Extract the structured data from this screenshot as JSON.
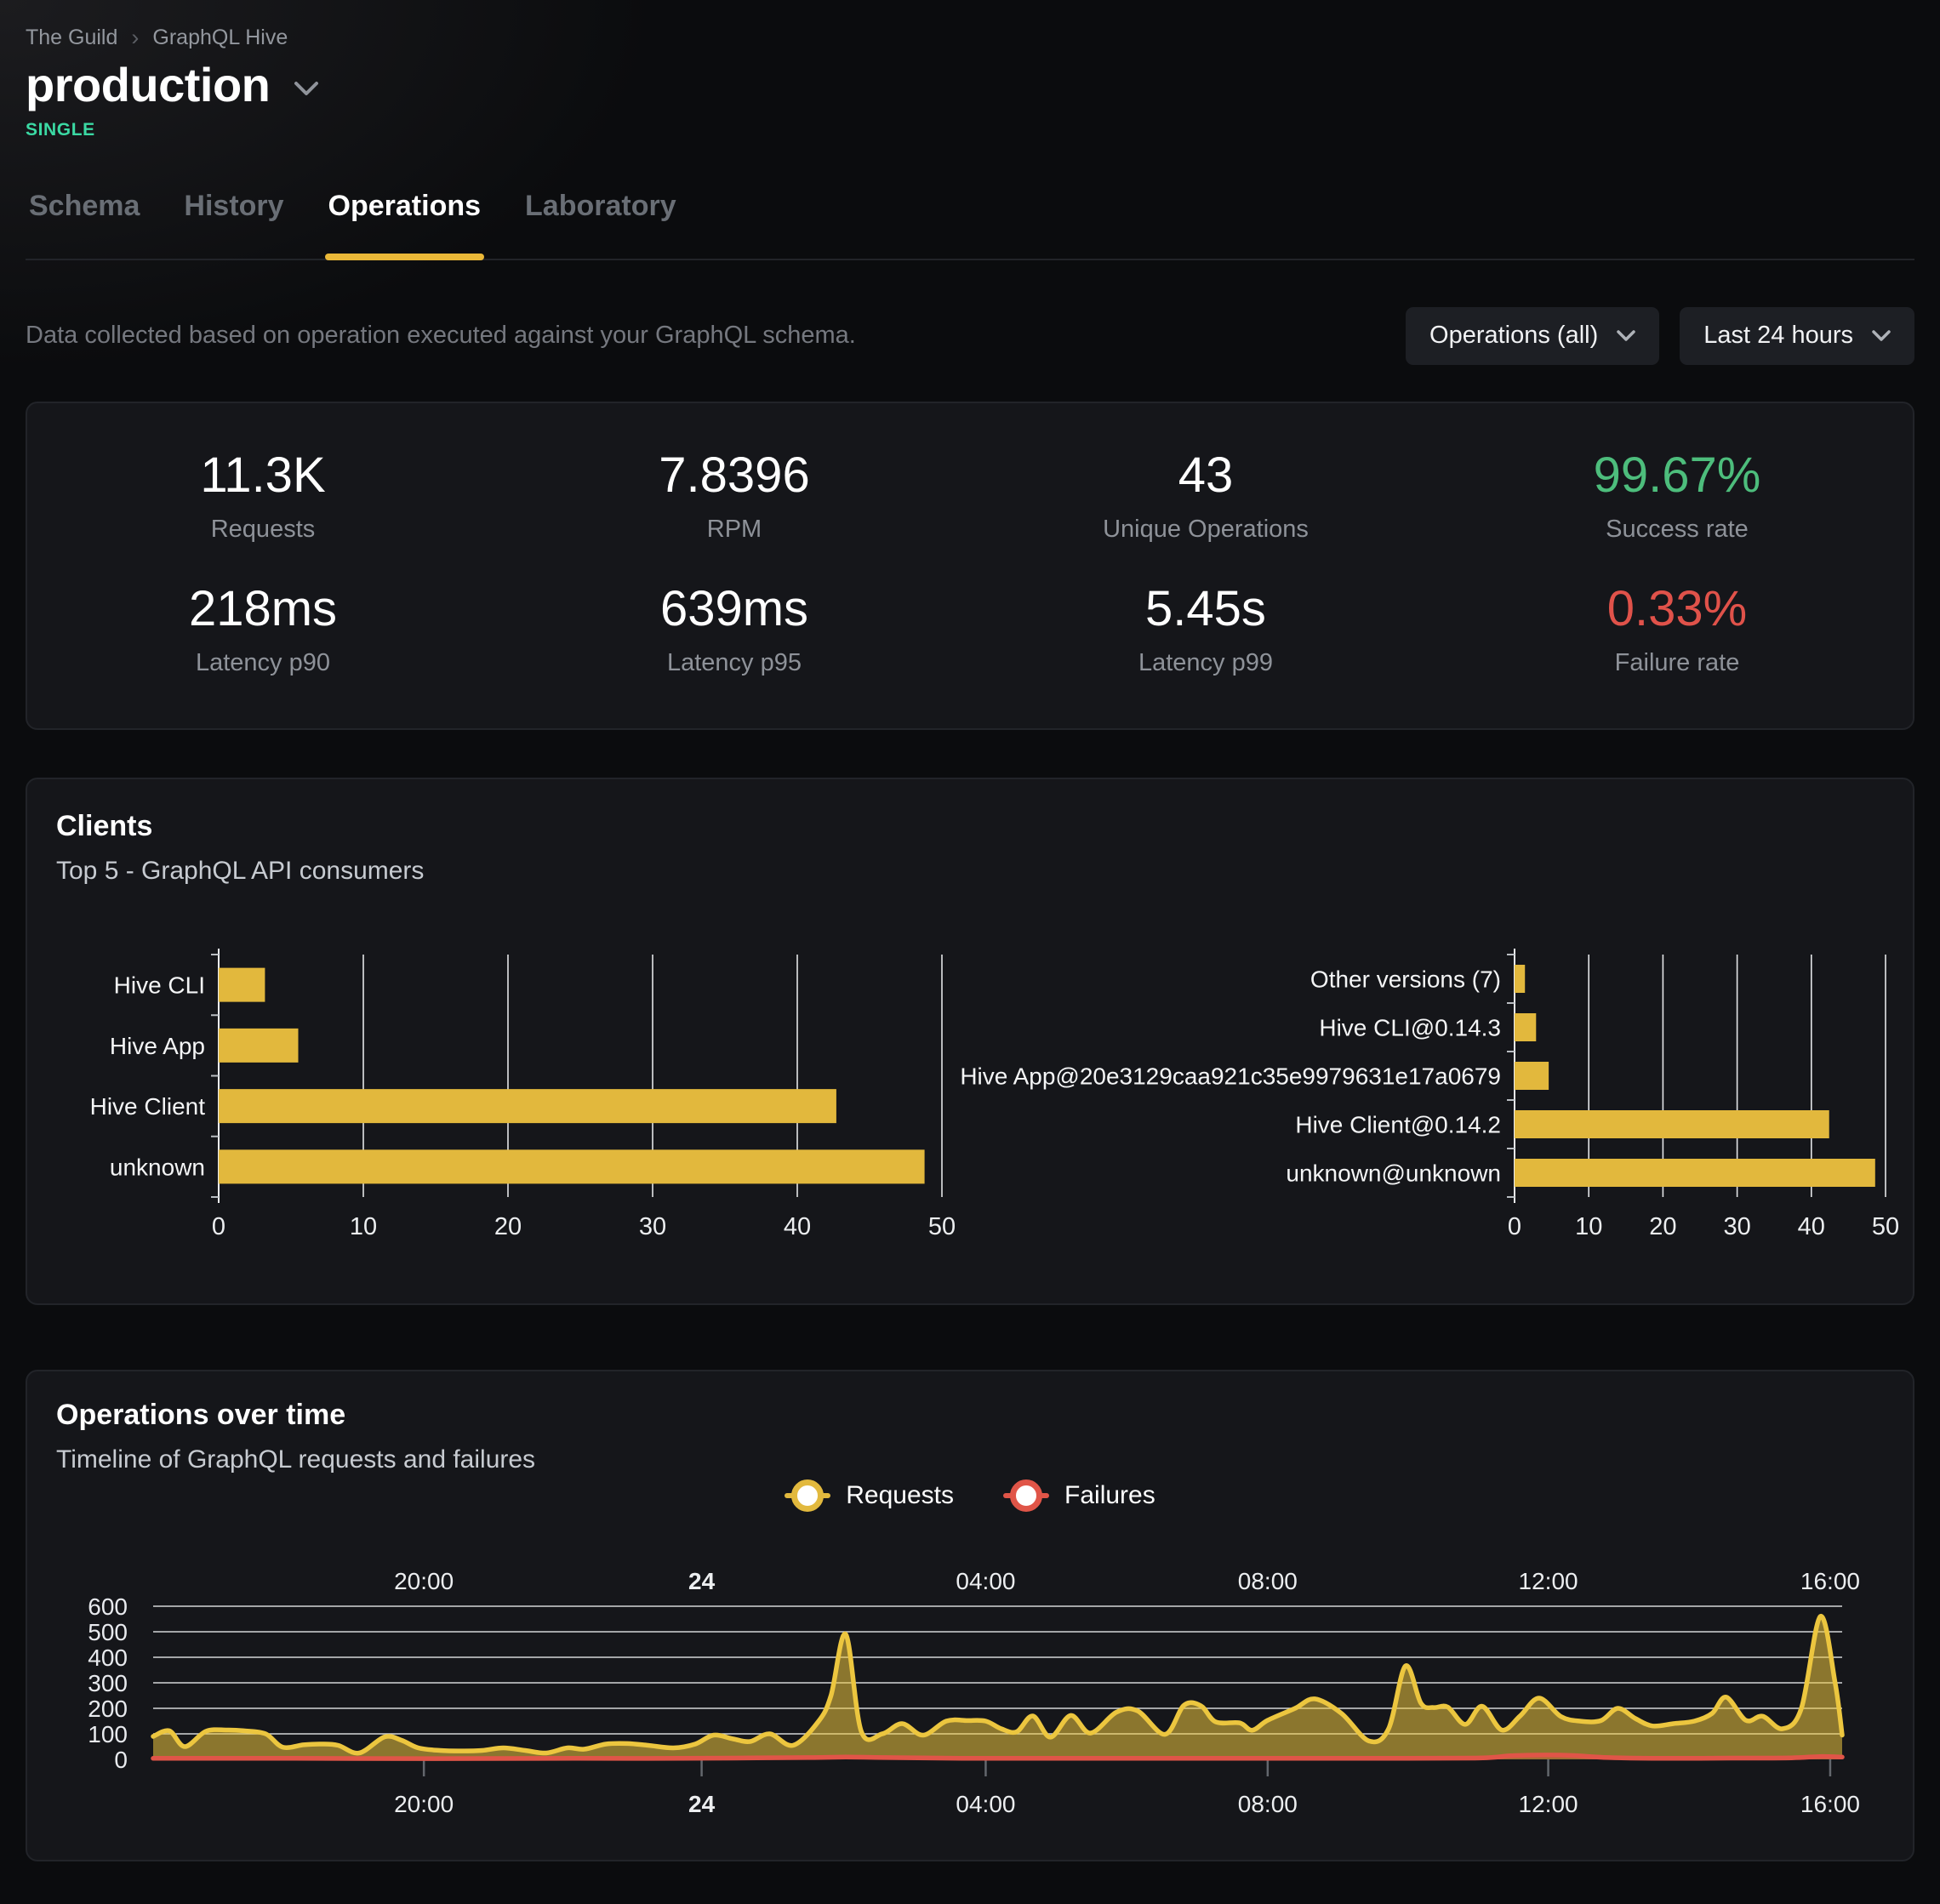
{
  "breadcrumb": {
    "org": "The Guild",
    "project": "GraphQL Hive"
  },
  "header": {
    "title": "production",
    "badge": "SINGLE",
    "badge_color": "#3bd9a3"
  },
  "tabs": [
    {
      "label": "Schema",
      "active": false
    },
    {
      "label": "History",
      "active": false
    },
    {
      "label": "Operations",
      "active": true
    },
    {
      "label": "Laboratory",
      "active": false
    }
  ],
  "filters": {
    "description": "Data collected based on operation executed against your GraphQL schema.",
    "operations_dropdown": "Operations (all)",
    "period_dropdown": "Last 24 hours"
  },
  "stats": [
    {
      "value": "11.3K",
      "label": "Requests",
      "color": "#ffffff"
    },
    {
      "value": "7.8396",
      "label": "RPM",
      "color": "#ffffff"
    },
    {
      "value": "43",
      "label": "Unique Operations",
      "color": "#ffffff"
    },
    {
      "value": "99.67%",
      "label": "Success rate",
      "color": "#4dbd7c"
    },
    {
      "value": "218ms",
      "label": "Latency p90",
      "color": "#ffffff"
    },
    {
      "value": "639ms",
      "label": "Latency p95",
      "color": "#ffffff"
    },
    {
      "value": "5.45s",
      "label": "Latency p99",
      "color": "#ffffff"
    },
    {
      "value": "0.33%",
      "label": "Failure rate",
      "color": "#e0524a"
    }
  ],
  "clients_card": {
    "title": "Clients",
    "subtitle": "Top 5 - GraphQL API consumers"
  },
  "operations_card": {
    "title": "Operations over time",
    "subtitle": "Timeline of GraphQL requests and failures",
    "legend": [
      {
        "label": "Requests",
        "color": "#e2b93e"
      },
      {
        "label": "Failures",
        "color": "#e05548"
      }
    ]
  },
  "chart_data": [
    {
      "type": "bar",
      "title": "Top clients by name",
      "orientation": "horizontal",
      "categories": [
        "Hive CLI",
        "Hive App",
        "Hive Client",
        "unknown"
      ],
      "values": [
        3.2,
        5.5,
        42.7,
        48.8
      ],
      "xlim": [
        0,
        50
      ],
      "ticks": [
        0,
        10,
        20,
        30,
        40,
        50
      ],
      "color": "#e2b83d",
      "grid": true
    },
    {
      "type": "bar",
      "title": "Top clients by version",
      "orientation": "horizontal",
      "categories": [
        "Other versions (7)",
        "Hive CLI@0.14.3",
        "Hive App@20e3129caa921c35e9979631e17a0679",
        "Hive Client@0.14.2",
        "unknown@unknown"
      ],
      "values": [
        1.4,
        2.9,
        4.6,
        42.4,
        48.6
      ],
      "xlim": [
        0,
        50
      ],
      "ticks": [
        0,
        10,
        20,
        30,
        40,
        50
      ],
      "color": "#e2b83d",
      "grid": true
    },
    {
      "type": "area",
      "title": "Operations over time",
      "t_range": [
        0,
        24.02
      ],
      "ylim": [
        0,
        600
      ],
      "y_ticks": [
        0,
        100,
        200,
        300,
        400,
        500,
        600
      ],
      "x_ticks": [
        {
          "t": 3.85,
          "label": "20:00",
          "bold": false
        },
        {
          "t": 7.8,
          "label": "24",
          "bold": true
        },
        {
          "t": 11.84,
          "label": "04:00",
          "bold": false
        },
        {
          "t": 15.85,
          "label": "08:00",
          "bold": false
        },
        {
          "t": 19.84,
          "label": "12:00",
          "bold": false
        },
        {
          "t": 23.85,
          "label": "16:00",
          "bold": false
        }
      ],
      "series": [
        {
          "name": "Requests",
          "color": "#ecc63f",
          "fill_opacity": 0.55,
          "points": [
            [
              0,
              90
            ],
            [
              0.23,
              112
            ],
            [
              0.45,
              50
            ],
            [
              0.75,
              110
            ],
            [
              1.05,
              115
            ],
            [
              1.29,
              112
            ],
            [
              1.6,
              100
            ],
            [
              1.84,
              48
            ],
            [
              2.14,
              57
            ],
            [
              2.38,
              60
            ],
            [
              2.63,
              55
            ],
            [
              2.93,
              25
            ],
            [
              3.29,
              88
            ],
            [
              3.53,
              75
            ],
            [
              3.77,
              45
            ],
            [
              4.08,
              35
            ],
            [
              4.38,
              33
            ],
            [
              4.68,
              35
            ],
            [
              4.98,
              45
            ],
            [
              5.29,
              35
            ],
            [
              5.59,
              25
            ],
            [
              5.89,
              45
            ],
            [
              6.13,
              40
            ],
            [
              6.44,
              60
            ],
            [
              6.74,
              62
            ],
            [
              7.04,
              55
            ],
            [
              7.4,
              45
            ],
            [
              7.71,
              60
            ],
            [
              7.97,
              95
            ],
            [
              8.25,
              80
            ],
            [
              8.49,
              70
            ],
            [
              8.77,
              100
            ],
            [
              9.1,
              55
            ],
            [
              9.46,
              148
            ],
            [
              9.64,
              250
            ],
            [
              9.85,
              490
            ],
            [
              10.07,
              110
            ],
            [
              10.37,
              100
            ],
            [
              10.65,
              140
            ],
            [
              10.95,
              95
            ],
            [
              11.28,
              150
            ],
            [
              11.58,
              152
            ],
            [
              11.84,
              150
            ],
            [
              12.06,
              120
            ],
            [
              12.28,
              108
            ],
            [
              12.51,
              170
            ],
            [
              12.76,
              87
            ],
            [
              13.05,
              172
            ],
            [
              13.33,
              103
            ],
            [
              13.7,
              185
            ],
            [
              14,
              190
            ],
            [
              14.39,
              98
            ],
            [
              14.66,
              212
            ],
            [
              14.9,
              210
            ],
            [
              15.11,
              147
            ],
            [
              15.45,
              143
            ],
            [
              15.63,
              114
            ],
            [
              15.85,
              153
            ],
            [
              16.24,
              200
            ],
            [
              16.52,
              237
            ],
            [
              16.9,
              180
            ],
            [
              17.29,
              72
            ],
            [
              17.57,
              120
            ],
            [
              17.81,
              366
            ],
            [
              18.03,
              220
            ],
            [
              18.21,
              203
            ],
            [
              18.41,
              205
            ],
            [
              18.66,
              137
            ],
            [
              18.9,
              208
            ],
            [
              19.18,
              115
            ],
            [
              19.44,
              170
            ],
            [
              19.71,
              240
            ],
            [
              20.02,
              168
            ],
            [
              20.29,
              150
            ],
            [
              20.59,
              152
            ],
            [
              20.83,
              200
            ],
            [
              21.08,
              160
            ],
            [
              21.32,
              131
            ],
            [
              21.62,
              140
            ],
            [
              21.92,
              150
            ],
            [
              22.17,
              180
            ],
            [
              22.37,
              244
            ],
            [
              22.65,
              153
            ],
            [
              22.89,
              169
            ],
            [
              23.17,
              120
            ],
            [
              23.44,
              200
            ],
            [
              23.71,
              560
            ],
            [
              23.92,
              300
            ],
            [
              24.02,
              95
            ]
          ]
        },
        {
          "name": "Failures",
          "color": "#e05548",
          "fill_opacity": 0.25,
          "points": [
            [
              0,
              4
            ],
            [
              2,
              4
            ],
            [
              4,
              3
            ],
            [
              6,
              4
            ],
            [
              7.5,
              4
            ],
            [
              9.3,
              7
            ],
            [
              9.85,
              9
            ],
            [
              10.4,
              7
            ],
            [
              11.5,
              4
            ],
            [
              13,
              4
            ],
            [
              15,
              4
            ],
            [
              17,
              4
            ],
            [
              18.8,
              5
            ],
            [
              19.3,
              14
            ],
            [
              19.8,
              17
            ],
            [
              20.2,
              15
            ],
            [
              20.7,
              7
            ],
            [
              21.5,
              4
            ],
            [
              22.5,
              5
            ],
            [
              23.3,
              6
            ],
            [
              23.7,
              11
            ],
            [
              24.02,
              9
            ]
          ]
        }
      ],
      "legend_position": "top-center"
    }
  ]
}
